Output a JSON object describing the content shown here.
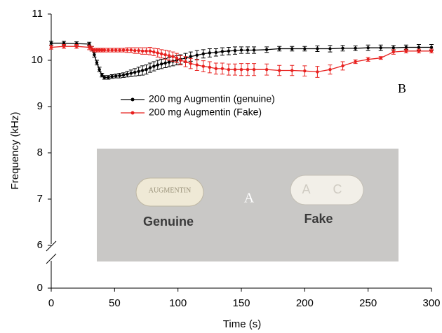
{
  "chart_data": {
    "type": "line",
    "xlabel": "Time (s)",
    "ylabel": "Frequency (kHz)",
    "xlim": [
      0,
      300
    ],
    "xticks": [
      0,
      50,
      100,
      150,
      200,
      250,
      300
    ],
    "ylim": [
      0,
      11
    ],
    "yticks": [
      0,
      6,
      7,
      8,
      9,
      10,
      11
    ],
    "ybreak": [
      0,
      6
    ],
    "annotations": {
      "panel_b": "B",
      "panel_a": "A",
      "pill_genuine_imprint": "AUGMENTIN",
      "pill_fake_imprint": "A C",
      "genuine_caption": "Genuine",
      "fake_caption": "Fake"
    },
    "legend": "upper-left",
    "x": [
      0,
      10,
      20,
      30,
      32,
      34,
      36,
      38,
      40,
      42,
      45,
      48,
      51,
      54,
      57,
      60,
      63,
      66,
      69,
      72,
      75,
      78,
      81,
      84,
      87,
      90,
      93,
      96,
      99,
      102,
      106,
      110,
      115,
      120,
      125,
      130,
      135,
      140,
      145,
      150,
      155,
      160,
      170,
      180,
      190,
      200,
      210,
      220,
      230,
      240,
      250,
      260,
      270,
      280,
      290,
      300
    ],
    "series": [
      {
        "name": "200 mg Augmentin (genuine)",
        "color": "#000000",
        "values": [
          10.37,
          10.37,
          10.36,
          10.35,
          10.25,
          10.12,
          9.95,
          9.8,
          9.68,
          9.63,
          9.63,
          9.65,
          9.66,
          9.67,
          9.68,
          9.7,
          9.72,
          9.74,
          9.76,
          9.78,
          9.8,
          9.84,
          9.87,
          9.9,
          9.92,
          9.94,
          9.96,
          9.98,
          10.0,
          10.02,
          10.05,
          10.08,
          10.11,
          10.14,
          10.16,
          10.17,
          10.19,
          10.2,
          10.21,
          10.22,
          10.22,
          10.22,
          10.23,
          10.25,
          10.25,
          10.25,
          10.25,
          10.25,
          10.26,
          10.26,
          10.27,
          10.27,
          10.27,
          10.28,
          10.28,
          10.28
        ],
        "errors": [
          0.04,
          0.04,
          0.04,
          0.04,
          0.05,
          0.05,
          0.05,
          0.05,
          0.04,
          0.04,
          0.04,
          0.04,
          0.04,
          0.05,
          0.05,
          0.06,
          0.07,
          0.08,
          0.09,
          0.1,
          0.1,
          0.1,
          0.1,
          0.1,
          0.1,
          0.1,
          0.1,
          0.1,
          0.1,
          0.1,
          0.1,
          0.1,
          0.1,
          0.09,
          0.09,
          0.08,
          0.08,
          0.08,
          0.08,
          0.07,
          0.07,
          0.07,
          0.06,
          0.05,
          0.05,
          0.05,
          0.06,
          0.07,
          0.06,
          0.05,
          0.06,
          0.06,
          0.05,
          0.05,
          0.06,
          0.06
        ]
      },
      {
        "name": "200 mg Augmentin (Fake)",
        "color": "#e8201e",
        "values": [
          10.28,
          10.3,
          10.3,
          10.28,
          10.25,
          10.22,
          10.22,
          10.22,
          10.22,
          10.22,
          10.22,
          10.22,
          10.22,
          10.22,
          10.22,
          10.22,
          10.22,
          10.21,
          10.21,
          10.2,
          10.2,
          10.2,
          10.18,
          10.16,
          10.14,
          10.12,
          10.1,
          10.08,
          10.05,
          10.0,
          9.97,
          9.93,
          9.9,
          9.87,
          9.85,
          9.82,
          9.82,
          9.8,
          9.8,
          9.8,
          9.8,
          9.8,
          9.8,
          9.78,
          9.78,
          9.77,
          9.75,
          9.8,
          9.88,
          9.97,
          10.02,
          10.05,
          10.18,
          10.2,
          10.2,
          10.2
        ],
        "errors": [
          0.04,
          0.04,
          0.04,
          0.05,
          0.05,
          0.04,
          0.04,
          0.04,
          0.04,
          0.04,
          0.04,
          0.04,
          0.04,
          0.04,
          0.04,
          0.05,
          0.05,
          0.06,
          0.06,
          0.07,
          0.07,
          0.08,
          0.08,
          0.09,
          0.09,
          0.1,
          0.1,
          0.1,
          0.1,
          0.1,
          0.11,
          0.11,
          0.12,
          0.12,
          0.12,
          0.12,
          0.12,
          0.12,
          0.12,
          0.13,
          0.13,
          0.13,
          0.12,
          0.11,
          0.11,
          0.11,
          0.12,
          0.1,
          0.09,
          0.04,
          0.04,
          0.03,
          0.05,
          0.04,
          0.04,
          0.04
        ]
      }
    ]
  }
}
